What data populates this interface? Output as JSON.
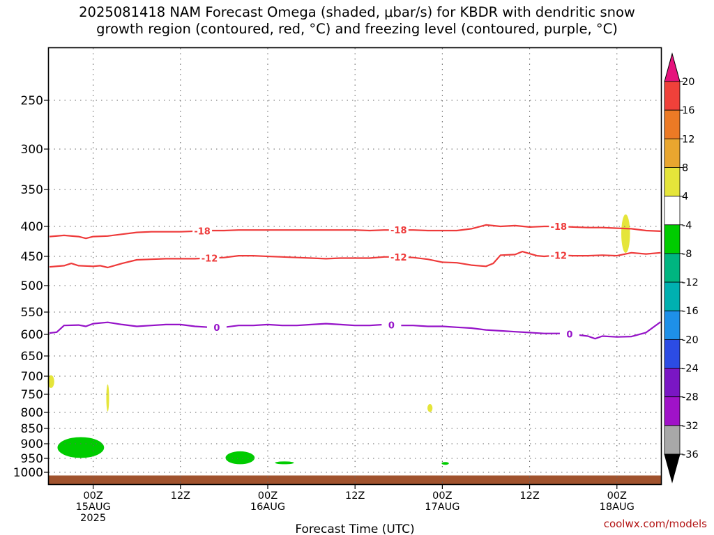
{
  "title_line1": "2025081418 NAM Forecast Omega (shaded, μbar/s) for KBDR with dendritic snow",
  "title_line2": "growth region (contoured, red, °C) and freezing level (contoured, purple, °C)",
  "credit": "coolwx.com/models",
  "chart_data": {
    "type": "contour",
    "xlabel": "Forecast Time (UTC)",
    "x_unit": "forecast hours from 2025-08-14 18Z",
    "xlim": [
      0,
      84
    ],
    "y_unit": "hPa",
    "ylim": [
      1030,
      200
    ],
    "y_ticks": [
      250,
      300,
      350,
      400,
      450,
      500,
      550,
      600,
      650,
      700,
      750,
      800,
      850,
      900,
      950,
      1000
    ],
    "x_ticks": [
      {
        "hour": 6,
        "lines": [
          "00Z",
          "15AUG",
          "2025"
        ]
      },
      {
        "hour": 18,
        "lines": [
          "12Z"
        ]
      },
      {
        "hour": 30,
        "lines": [
          "00Z",
          "16AUG"
        ]
      },
      {
        "hour": 42,
        "lines": [
          "12Z"
        ]
      },
      {
        "hour": 54,
        "lines": [
          "00Z",
          "17AUG"
        ]
      },
      {
        "hour": 66,
        "lines": [
          "12Z"
        ]
      },
      {
        "hour": 78,
        "lines": [
          "00Z",
          "18AUG"
        ]
      }
    ],
    "grid": true,
    "contours": [
      {
        "level": "-18",
        "color": "#ee3a3a",
        "label_hours": [
          21,
          48,
          70
        ],
        "points": [
          [
            0,
            417
          ],
          [
            2,
            415
          ],
          [
            4,
            417
          ],
          [
            5,
            420
          ],
          [
            6,
            417
          ],
          [
            8,
            416
          ],
          [
            10,
            413
          ],
          [
            12,
            410
          ],
          [
            14,
            409
          ],
          [
            16,
            409
          ],
          [
            18,
            409
          ],
          [
            20,
            408
          ],
          [
            22,
            407
          ],
          [
            24,
            407
          ],
          [
            26,
            406
          ],
          [
            28,
            406
          ],
          [
            30,
            406
          ],
          [
            32,
            406
          ],
          [
            34,
            406
          ],
          [
            36,
            406
          ],
          [
            38,
            406
          ],
          [
            40,
            406
          ],
          [
            42,
            406
          ],
          [
            44,
            407
          ],
          [
            46,
            406
          ],
          [
            48,
            406
          ],
          [
            50,
            406
          ],
          [
            52,
            407
          ],
          [
            54,
            407
          ],
          [
            56,
            407
          ],
          [
            58,
            404
          ],
          [
            60,
            398
          ],
          [
            62,
            400
          ],
          [
            64,
            399
          ],
          [
            66,
            401
          ],
          [
            68,
            400
          ],
          [
            70,
            400
          ],
          [
            72,
            401
          ],
          [
            74,
            402
          ],
          [
            76,
            402
          ],
          [
            78,
            403
          ],
          [
            80,
            404
          ],
          [
            82,
            407
          ],
          [
            84,
            408
          ]
        ]
      },
      {
        "level": "-12",
        "color": "#ee3a3a",
        "label_hours": [
          22,
          48,
          70
        ],
        "points": [
          [
            0,
            468
          ],
          [
            2,
            466
          ],
          [
            3,
            462
          ],
          [
            4,
            466
          ],
          [
            6,
            467
          ],
          [
            7,
            466
          ],
          [
            8,
            469
          ],
          [
            10,
            462
          ],
          [
            12,
            456
          ],
          [
            14,
            455
          ],
          [
            16,
            454
          ],
          [
            18,
            454
          ],
          [
            20,
            454
          ],
          [
            22,
            453
          ],
          [
            24,
            452
          ],
          [
            26,
            449
          ],
          [
            28,
            449
          ],
          [
            30,
            450
          ],
          [
            32,
            451
          ],
          [
            34,
            452
          ],
          [
            36,
            453
          ],
          [
            38,
            454
          ],
          [
            40,
            453
          ],
          [
            42,
            453
          ],
          [
            44,
            453
          ],
          [
            46,
            451
          ],
          [
            48,
            451
          ],
          [
            50,
            452
          ],
          [
            52,
            455
          ],
          [
            54,
            460
          ],
          [
            56,
            461
          ],
          [
            58,
            465
          ],
          [
            60,
            467
          ],
          [
            61,
            462
          ],
          [
            62,
            448
          ],
          [
            64,
            447
          ],
          [
            65,
            442
          ],
          [
            67,
            449
          ],
          [
            68,
            450
          ],
          [
            70,
            448
          ],
          [
            72,
            449
          ],
          [
            74,
            449
          ],
          [
            76,
            448
          ],
          [
            78,
            449
          ],
          [
            80,
            444
          ],
          [
            82,
            446
          ],
          [
            84,
            444
          ]
        ]
      },
      {
        "level": "0",
        "color": "#9512c8",
        "label_hours": [
          23,
          47,
          71.5
        ],
        "points": [
          [
            0,
            597
          ],
          [
            1,
            595
          ],
          [
            2,
            580
          ],
          [
            4,
            579
          ],
          [
            5,
            582
          ],
          [
            6,
            576
          ],
          [
            8,
            573
          ],
          [
            10,
            578
          ],
          [
            12,
            582
          ],
          [
            14,
            580
          ],
          [
            16,
            578
          ],
          [
            18,
            578
          ],
          [
            20,
            582
          ],
          [
            22,
            584
          ],
          [
            24,
            584
          ],
          [
            26,
            580
          ],
          [
            28,
            580
          ],
          [
            30,
            578
          ],
          [
            32,
            580
          ],
          [
            34,
            580
          ],
          [
            36,
            578
          ],
          [
            38,
            576
          ],
          [
            40,
            578
          ],
          [
            42,
            580
          ],
          [
            44,
            580
          ],
          [
            46,
            578
          ],
          [
            48,
            580
          ],
          [
            50,
            580
          ],
          [
            52,
            582
          ],
          [
            54,
            582
          ],
          [
            56,
            584
          ],
          [
            58,
            586
          ],
          [
            60,
            590
          ],
          [
            62,
            592
          ],
          [
            64,
            594
          ],
          [
            66,
            596
          ],
          [
            68,
            598
          ],
          [
            70,
            598
          ],
          [
            71,
            598
          ],
          [
            72,
            600
          ],
          [
            74,
            604
          ],
          [
            75,
            610
          ],
          [
            76,
            604
          ],
          [
            78,
            606
          ],
          [
            80,
            605
          ],
          [
            82,
            596
          ],
          [
            84,
            572
          ]
        ]
      }
    ],
    "omega_regions": [
      {
        "color": "#e5e53a",
        "center": [
          0.2,
          715
        ],
        "size": [
          0.9,
          35
        ]
      },
      {
        "color": "#e5e53a",
        "center": [
          8.0,
          760
        ],
        "size": [
          0.35,
          75
        ]
      },
      {
        "color": "#e5e53a",
        "center": [
          52.3,
          788
        ],
        "size": [
          0.7,
          22
        ]
      },
      {
        "color": "#e5e53a",
        "center": [
          79.2,
          412
        ],
        "size": [
          1.2,
          60
        ]
      },
      {
        "color": "#00cc00",
        "center": [
          4.3,
          913
        ],
        "size": [
          6.4,
          70
        ]
      },
      {
        "color": "#00cc00",
        "center": [
          26.2,
          948
        ],
        "size": [
          4.0,
          45
        ]
      },
      {
        "color": "#00cc00",
        "center": [
          32.3,
          966
        ],
        "size": [
          2.6,
          8
        ]
      },
      {
        "color": "#00cc00",
        "center": [
          54.4,
          968
        ],
        "size": [
          1.0,
          7
        ]
      }
    ],
    "terrain_pressure_hpa": 1008,
    "terrain_color": "#a0522d",
    "colorbar": {
      "labels": [
        "20",
        "16",
        "12",
        "8",
        "4",
        "-4",
        "-8",
        "-12",
        "-16",
        "-20",
        "-24",
        "-28",
        "-32",
        "-36"
      ],
      "colors": [
        "#e6127c",
        "#f0413a",
        "#ec7a25",
        "#e9a62f",
        "#e5e53a",
        "#ffffff",
        "#00cc00",
        "#00b580",
        "#00b0b0",
        "#1e90e8",
        "#2c4ce4",
        "#7a16c4",
        "#a012c8",
        "#a8a8a8",
        "#000000"
      ]
    }
  }
}
